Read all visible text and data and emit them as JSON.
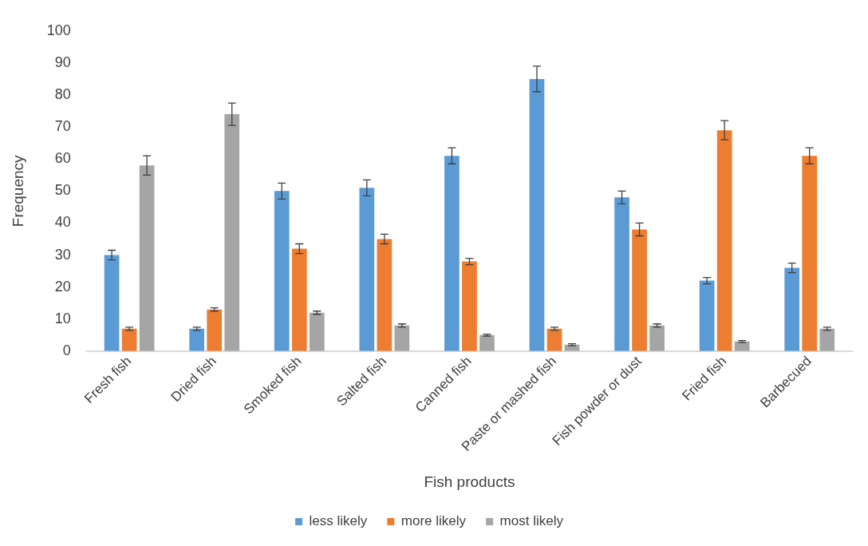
{
  "chart_data": {
    "type": "bar",
    "xlabel": "Fish products",
    "ylabel": "Frequency",
    "categories": [
      "Fresh fish",
      "Dried fish",
      "Smoked fish",
      "Salted fish",
      "Canned fish",
      "Paste or mashed fish",
      "Fish powder or dust",
      "Fried fish",
      "Barbecued"
    ],
    "series": [
      {
        "name": "less likely",
        "color": "#5b9bd5",
        "values": [
          30,
          7,
          50,
          51,
          61,
          85,
          48,
          22,
          26
        ],
        "errors": [
          1.5,
          0.5,
          2.5,
          2.5,
          2.5,
          4,
          2,
          1,
          1.5
        ]
      },
      {
        "name": "more likely",
        "color": "#ed7d31",
        "values": [
          7,
          13,
          32,
          35,
          28,
          7,
          38,
          69,
          61
        ],
        "errors": [
          0.5,
          0.5,
          1.5,
          1.5,
          1,
          0.5,
          2,
          3,
          2.5
        ]
      },
      {
        "name": "most likely",
        "color": "#a5a5a5",
        "values": [
          58,
          74,
          12,
          8,
          5,
          2,
          8,
          3,
          7
        ],
        "errors": [
          3,
          3.5,
          0.5,
          0.5,
          0.3,
          0.3,
          0.5,
          0.3,
          0.5
        ]
      }
    ],
    "ylim": [
      0,
      100
    ],
    "yticks": [
      0,
      10,
      20,
      30,
      40,
      50,
      60,
      70,
      80,
      90,
      100
    ],
    "grid": false,
    "legend": "bottom"
  }
}
